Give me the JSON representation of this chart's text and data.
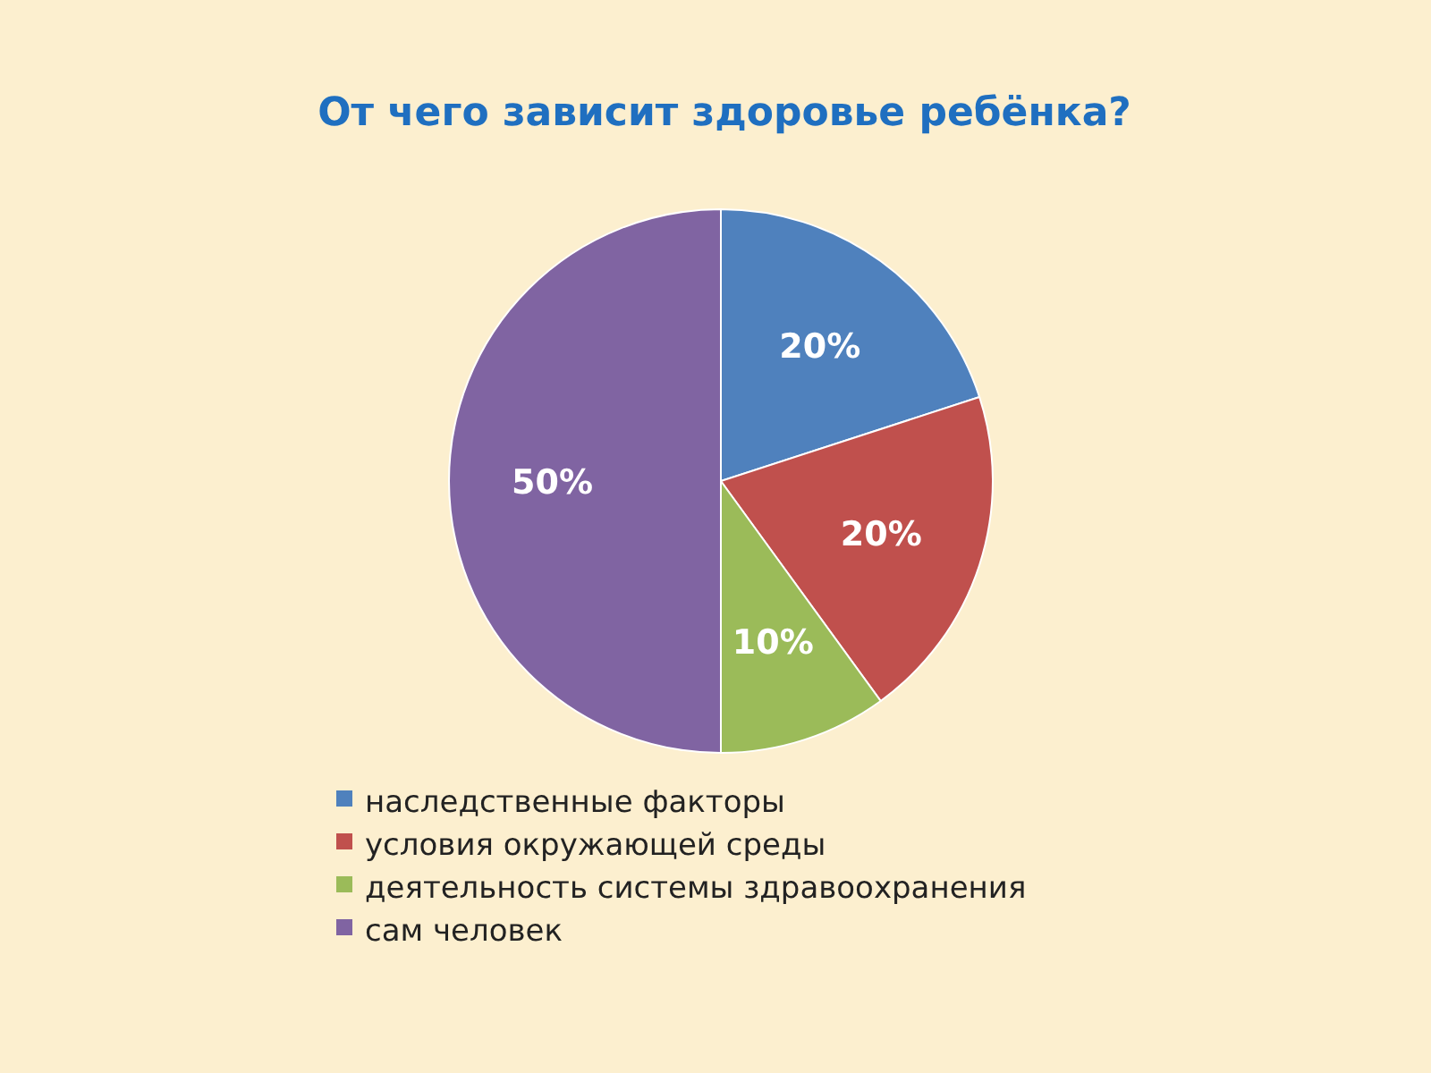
{
  "chart_data": {
    "type": "pie",
    "title": "От чего зависит здоровье ребёнка?",
    "categories": [
      "наследственные факторы",
      "условия окружающей среды",
      "деятельность системы здравоохранения",
      "сам человек"
    ],
    "values": [
      20,
      20,
      10,
      50
    ],
    "colors": [
      "#4f81bd",
      "#c0504d",
      "#9bbb59",
      "#8064a2"
    ],
    "value_labels": [
      "20%",
      "20%",
      "10%",
      "50%"
    ],
    "legend": "bottom"
  }
}
